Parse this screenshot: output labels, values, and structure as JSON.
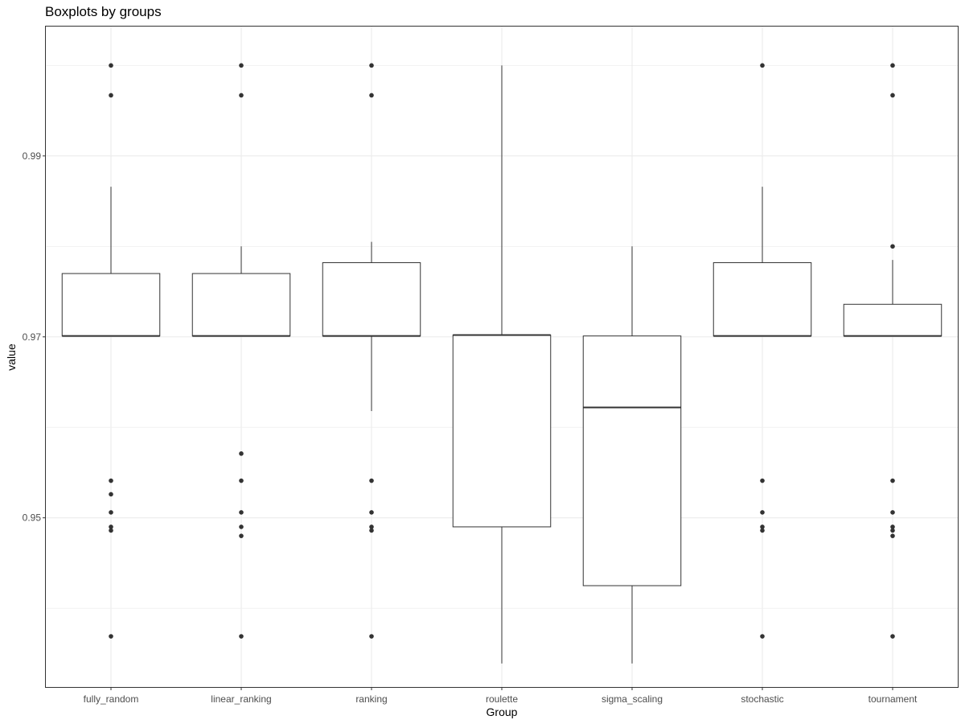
{
  "chart_data": {
    "type": "boxplot",
    "title": "Boxplots by groups",
    "xlabel": "Group",
    "ylabel": "value",
    "ylim": [
      0.9313,
      1.0043
    ],
    "yticks": [
      0.95,
      0.97,
      0.99
    ],
    "ytick_labels": [
      "0.95",
      "0.97",
      "0.99"
    ],
    "grid": true,
    "categories": [
      "fully_random",
      "linear_ranking",
      "ranking",
      "roulette",
      "sigma_scaling",
      "stochastic",
      "tournament"
    ],
    "boxes": [
      {
        "group": "fully_random",
        "whisker_low": 0.9701,
        "q1": 0.9701,
        "median": 0.9701,
        "q3": 0.977,
        "whisker_high": 0.9866,
        "outliers": [
          1.0,
          0.9967,
          0.9541,
          0.9526,
          0.9506,
          0.949,
          0.9486,
          0.9369
        ]
      },
      {
        "group": "linear_ranking",
        "whisker_low": 0.9701,
        "q1": 0.9701,
        "median": 0.9701,
        "q3": 0.977,
        "whisker_high": 0.98,
        "outliers": [
          1.0,
          0.9967,
          0.9571,
          0.9541,
          0.9506,
          0.949,
          0.948,
          0.9369
        ]
      },
      {
        "group": "ranking",
        "whisker_low": 0.9618,
        "q1": 0.9701,
        "median": 0.9701,
        "q3": 0.9782,
        "whisker_high": 0.9805,
        "outliers": [
          1.0,
          0.9967,
          0.9541,
          0.9506,
          0.949,
          0.9486,
          0.9369
        ]
      },
      {
        "group": "roulette",
        "whisker_low": 0.9339,
        "q1": 0.949,
        "median": 0.9702,
        "q3": 0.9702,
        "whisker_high": 1.0,
        "outliers": []
      },
      {
        "group": "sigma_scaling",
        "whisker_low": 0.9339,
        "q1": 0.9425,
        "median": 0.9622,
        "q3": 0.9701,
        "whisker_high": 0.98,
        "outliers": []
      },
      {
        "group": "stochastic",
        "whisker_low": 0.9701,
        "q1": 0.9701,
        "median": 0.9701,
        "q3": 0.9782,
        "whisker_high": 0.9866,
        "outliers": [
          1.0,
          0.9541,
          0.9506,
          0.949,
          0.9486,
          0.9369
        ]
      },
      {
        "group": "tournament",
        "whisker_low": 0.9701,
        "q1": 0.9701,
        "median": 0.9701,
        "q3": 0.9736,
        "whisker_high": 0.9785,
        "outliers": [
          1.0,
          0.9967,
          0.98,
          0.9541,
          0.9506,
          0.949,
          0.9486,
          0.948,
          0.9369
        ]
      }
    ]
  },
  "colors": {
    "panel_border": "#333333",
    "grid": "#ebebeb",
    "box_line": "#333333",
    "box_fill": "#ffffff",
    "outlier": "#333333",
    "tick_label": "#4d4d4d"
  }
}
